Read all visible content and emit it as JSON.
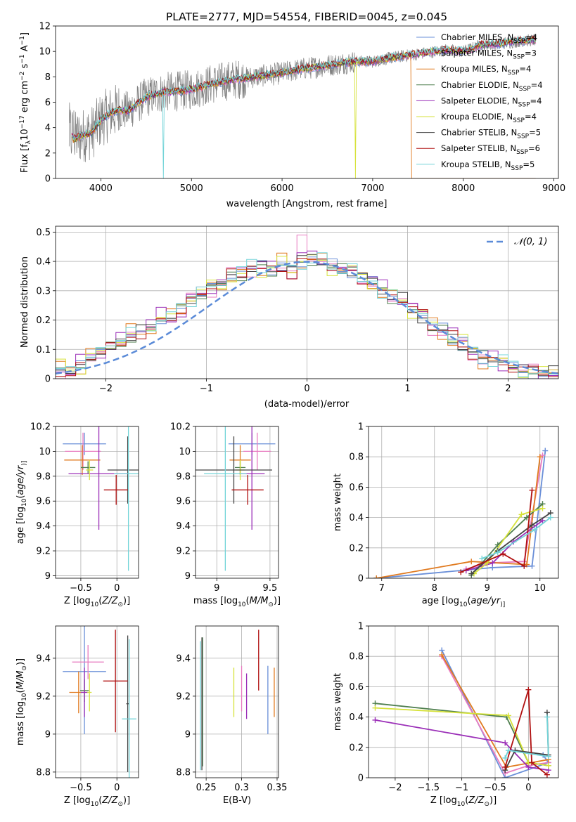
{
  "colors": {
    "Chabrier MILES": "#6a8fd8",
    "Salpeter MILES": "#e87bc0",
    "Kroupa MILES": "#e07a1f",
    "Chabrier ELODIE": "#4f7f4f",
    "Salpeter ELODIE": "#9b2fb8",
    "Kroupa ELODIE": "#d6e23a",
    "Chabrier STELIB": "#444444",
    "Salpeter STELIB": "#b01010",
    "Kroupa STELIB": "#73d4d8",
    "data": "#808080",
    "normal": "#5b8bd8"
  },
  "chart_data": [
    {
      "type": "line",
      "title": "PLATE=2777, MJD=54554, FIBERID=0045, z=0.045",
      "xlabel": "wavelength [Angstrom, rest frame]",
      "ylabel_parts": [
        "Flux [f",
        "λ",
        "10",
        "−17",
        " erg cm",
        "−2",
        " s",
        "−1",
        " A",
        "−1",
        "]"
      ],
      "xlim": [
        3500,
        9050
      ],
      "ylim": [
        0,
        12
      ],
      "xticks": [
        4000,
        5000,
        6000,
        7000,
        8000,
        9000
      ],
      "yticks": [
        0,
        2,
        4,
        6,
        8,
        10,
        12
      ],
      "legend": [
        {
          "name": "Chabrier MILES",
          "n": "4"
        },
        {
          "name": "Salpeter MILES",
          "n": "3"
        },
        {
          "name": "Kroupa MILES",
          "n": "4"
        },
        {
          "name": "Chabrier ELODIE",
          "n": "4"
        },
        {
          "name": "Salpeter ELODIE",
          "n": "4"
        },
        {
          "name": "Kroupa ELODIE",
          "n": "4"
        },
        {
          "name": "Chabrier STELIB",
          "n": "5"
        },
        {
          "name": "Salpeter STELIB",
          "n": "6"
        },
        {
          "name": "Kroupa STELIB",
          "n": "5"
        }
      ],
      "legend_placement": "upper-right",
      "model_continuum": {
        "x": [
          3650,
          3700,
          3800,
          3900,
          4000,
          4100,
          4200,
          4300,
          4500,
          4700,
          4900,
          5000,
          5200,
          5400,
          5600,
          5800,
          6000,
          6200,
          6400,
          6600,
          6800,
          7000,
          7200,
          7400,
          7600,
          7800,
          8000,
          8200,
          8400,
          8600,
          8800
        ],
        "y": [
          3.8,
          3.1,
          3.4,
          3.6,
          4.6,
          5.1,
          5.4,
          5.3,
          6.4,
          6.8,
          6.9,
          7.0,
          7.4,
          7.7,
          7.9,
          8.1,
          8.3,
          8.6,
          8.8,
          9.0,
          9.2,
          9.2,
          9.5,
          9.7,
          9.9,
          10.1,
          10.0,
          10.5,
          10.6,
          10.8,
          10.9
        ]
      },
      "data_spectrum_range": [
        3650,
        8800
      ],
      "dropouts": [
        {
          "x": 4680,
          "series": "Kroupa STELIB"
        },
        {
          "x": 6800,
          "series": "Kroupa ELODIE"
        },
        {
          "x": 7420,
          "series": "Kroupa MILES"
        }
      ]
    },
    {
      "type": "histogram",
      "xlabel": "(data-model)/error",
      "ylabel": "Normed distribution",
      "xlim": [
        -2.5,
        2.5
      ],
      "ylim": [
        0,
        0.52
      ],
      "xticks": [
        -2,
        -1,
        0,
        1,
        2
      ],
      "yticks": [
        0.0,
        0.1,
        0.2,
        0.3,
        0.4,
        0.5
      ],
      "grid": true,
      "legend": [
        {
          "name": "𝒩(0, 1)",
          "style": "dashed"
        }
      ],
      "legend_placement": "upper-right",
      "bin_width": 0.1,
      "bin_start": -2.5,
      "envelope": [
        0.03,
        0.03,
        0.05,
        0.07,
        0.09,
        0.11,
        0.12,
        0.15,
        0.16,
        0.18,
        0.21,
        0.22,
        0.24,
        0.27,
        0.29,
        0.31,
        0.33,
        0.35,
        0.36,
        0.38,
        0.38,
        0.37,
        0.39,
        0.37,
        0.4,
        0.41,
        0.4,
        0.38,
        0.38,
        0.37,
        0.34,
        0.33,
        0.3,
        0.28,
        0.27,
        0.24,
        0.21,
        0.18,
        0.16,
        0.14,
        0.12,
        0.09,
        0.07,
        0.06,
        0.05,
        0.04,
        0.03,
        0.03,
        0.02,
        0.02
      ],
      "series_offsets": [
        0.012,
        -0.015,
        0.02,
        -0.008,
        0.018,
        -0.02,
        0.006,
        -0.012,
        0.015
      ]
    },
    {
      "type": "errorbar",
      "xlabel_parts": [
        "Z [log",
        "10",
        "(",
        "Z/Z",
        "⊙",
        ")]"
      ],
      "ylabel_parts": [
        "age  [log",
        "10",
        "(",
        "age/yr",
        ")]"
      ],
      "xlim": [
        -0.85,
        0.3
      ],
      "ylim": [
        8.98,
        10.2
      ],
      "xticks": [
        -0.5,
        0.0
      ],
      "yticks": [
        9.0,
        9.2,
        9.4,
        9.6,
        9.8,
        10.0,
        10.2
      ],
      "grid": true,
      "points": [
        {
          "series": "Chabrier MILES",
          "x": -0.45,
          "xerr": 0.3,
          "y": 10.06,
          "yerr": 0.09
        },
        {
          "series": "Salpeter MILES",
          "x": -0.47,
          "xerr": 0.25,
          "y": 10.0,
          "yerr": 0.15
        },
        {
          "series": "Kroupa MILES",
          "x": -0.48,
          "xerr": 0.25,
          "y": 9.93,
          "yerr": 0.12
        },
        {
          "series": "Chabrier ELODIE",
          "x": -0.4,
          "xerr": 0.1,
          "y": 9.87,
          "yerr": 0.05
        },
        {
          "series": "Salpeter ELODIE",
          "x": -0.25,
          "xerr": 0.42,
          "y": 9.82,
          "yerr": 0.45
        },
        {
          "series": "Kroupa ELODIE",
          "x": -0.38,
          "xerr": 0.05,
          "y": 9.85,
          "yerr": 0.08
        },
        {
          "series": "Chabrier STELIB",
          "x": 0.15,
          "xerr": 0.28,
          "y": 9.85,
          "yerr": 0.27
        },
        {
          "series": "Salpeter STELIB",
          "x": -0.01,
          "xerr": 0.17,
          "y": 9.69,
          "yerr": 0.12
        },
        {
          "series": "Kroupa STELIB",
          "x": 0.16,
          "xerr": 0.2,
          "y": 9.82,
          "yerr": 0.78
        }
      ]
    },
    {
      "type": "errorbar",
      "xlabel_parts": [
        "mass [log",
        "10",
        "(",
        "M/M",
        "⊙",
        ")]"
      ],
      "ylabel_parts": [],
      "xlim": [
        8.8,
        9.58
      ],
      "ylim": [
        8.98,
        10.2
      ],
      "xticks": [
        9.0,
        9.5
      ],
      "yticks": [
        9.0,
        9.2,
        9.4,
        9.6,
        9.8,
        10.0,
        10.2
      ],
      "grid": true,
      "points": [
        {
          "series": "Chabrier MILES",
          "x": 9.33,
          "xerr": 0.22,
          "y": 10.06,
          "yerr": 0.09
        },
        {
          "series": "Salpeter MILES",
          "x": 9.38,
          "xerr": 0.13,
          "y": 10.0,
          "yerr": 0.15
        },
        {
          "series": "Kroupa MILES",
          "x": 9.22,
          "xerr": 0.1,
          "y": 9.93,
          "yerr": 0.12
        },
        {
          "series": "Chabrier ELODIE",
          "x": 9.22,
          "xerr": 0.05,
          "y": 9.87,
          "yerr": 0.05
        },
        {
          "series": "Salpeter ELODIE",
          "x": 9.33,
          "xerr": 0.12,
          "y": 9.82,
          "yerr": 0.45
        },
        {
          "series": "Kroupa ELODIE",
          "x": 9.22,
          "xerr": 0.04,
          "y": 9.85,
          "yerr": 0.08
        },
        {
          "series": "Chabrier STELIB",
          "x": 9.16,
          "xerr": 0.36,
          "y": 9.85,
          "yerr": 0.27
        },
        {
          "series": "Salpeter STELIB",
          "x": 9.29,
          "xerr": 0.15,
          "y": 9.69,
          "yerr": 0.12
        },
        {
          "series": "Kroupa STELIB",
          "x": 9.08,
          "xerr": 0.2,
          "y": 9.82,
          "yerr": 0.78
        }
      ]
    },
    {
      "type": "line",
      "xlabel_parts": [
        "age  [log",
        "10",
        "(",
        "age/yr",
        ")]"
      ],
      "ylabel": "mass weight",
      "xlim": [
        6.75,
        10.35
      ],
      "ylim": [
        0,
        1
      ],
      "xticks": [
        7,
        8,
        9,
        10
      ],
      "yticks": [
        0.0,
        0.2,
        0.4,
        0.6,
        0.8,
        1.0
      ],
      "grid": true,
      "series": [
        {
          "name": "Chabrier MILES",
          "x": [
            6.9,
            9.1,
            9.85,
            10.1
          ],
          "y": [
            0.0,
            0.07,
            0.08,
            0.84
          ]
        },
        {
          "name": "Salpeter MILES",
          "x": [
            8.6,
            9.0,
            9.7,
            10.05
          ],
          "y": [
            0.06,
            0.1,
            0.11,
            0.81
          ]
        },
        {
          "name": "Kroupa MILES",
          "x": [
            6.9,
            8.7,
            9.75,
            10.0
          ],
          "y": [
            0.0,
            0.11,
            0.09,
            0.8
          ]
        },
        {
          "name": "Chabrier ELODIE",
          "x": [
            8.7,
            9.2,
            9.75,
            10.05
          ],
          "y": [
            0.02,
            0.22,
            0.4,
            0.49
          ]
        },
        {
          "name": "Salpeter ELODIE",
          "x": [
            8.6,
            9.1,
            9.5,
            10.05
          ],
          "y": [
            0.05,
            0.1,
            0.24,
            0.38
          ]
        },
        {
          "name": "Kroupa ELODIE",
          "x": [
            8.75,
            9.0,
            9.65,
            10.05
          ],
          "y": [
            0.03,
            0.1,
            0.42,
            0.46
          ]
        },
        {
          "name": "Chabrier STELIB",
          "x": [
            8.7,
            9.2,
            9.85,
            10.2
          ],
          "y": [
            0.03,
            0.18,
            0.35,
            0.43
          ]
        },
        {
          "name": "Salpeter STELIB",
          "x": [
            8.5,
            9.3,
            9.7,
            9.85
          ],
          "y": [
            0.04,
            0.16,
            0.08,
            0.58
          ]
        },
        {
          "name": "Kroupa STELIB",
          "x": [
            8.9,
            9.2,
            9.9,
            10.2
          ],
          "y": [
            0.13,
            0.17,
            0.32,
            0.4
          ]
        }
      ]
    },
    {
      "type": "errorbar",
      "xlabel_parts": [
        "Z [log",
        "10",
        "(",
        "Z/Z",
        "⊙",
        ")]"
      ],
      "ylabel_parts": [
        "mass [log",
        "10",
        "(",
        "M/M",
        "⊙",
        ")]"
      ],
      "xlim": [
        -0.85,
        0.3
      ],
      "ylim": [
        8.77,
        9.57
      ],
      "xticks": [
        -0.5,
        0.0
      ],
      "yticks": [
        8.8,
        9.0,
        9.2,
        9.4
      ],
      "grid": true,
      "points": [
        {
          "series": "Chabrier MILES",
          "x": -0.45,
          "xerr": 0.3,
          "y": 9.33,
          "yerr": 0.33
        },
        {
          "series": "Salpeter MILES",
          "x": -0.4,
          "xerr": 0.22,
          "y": 9.38,
          "yerr": 0.09
        },
        {
          "series": "Kroupa MILES",
          "x": -0.53,
          "xerr": 0.13,
          "y": 9.22,
          "yerr": 0.11
        },
        {
          "series": "Chabrier ELODIE",
          "x": -0.45,
          "xerr": 0.06,
          "y": 9.23,
          "yerr": 0.06
        },
        {
          "series": "Salpeter ELODIE",
          "x": -0.45,
          "xerr": 0.05,
          "y": 9.22,
          "yerr": 0.13
        },
        {
          "series": "Kroupa ELODIE",
          "x": -0.38,
          "xerr": 0.03,
          "y": 9.22,
          "yerr": 0.1
        },
        {
          "series": "Chabrier STELIB",
          "x": 0.15,
          "xerr": 0.02,
          "y": 9.16,
          "yerr": 0.36
        },
        {
          "series": "Salpeter STELIB",
          "x": -0.02,
          "xerr": 0.17,
          "y": 9.28,
          "yerr": 0.27
        },
        {
          "series": "Kroupa STELIB",
          "x": 0.17,
          "xerr": 0.1,
          "y": 9.08,
          "yerr": 0.42
        }
      ]
    },
    {
      "type": "errorbar",
      "xlabel": "E(B-V)",
      "ylabel_parts": [],
      "xlim": [
        0.235,
        0.352
      ],
      "ylim": [
        8.77,
        9.57
      ],
      "xticks": [
        0.25,
        0.3,
        0.35
      ],
      "yticks": [
        8.8,
        9.0,
        9.2,
        9.4
      ],
      "grid": true,
      "points": [
        {
          "series": "Chabrier MILES",
          "x": 0.337,
          "y": 9.18,
          "yerr": 0.18
        },
        {
          "series": "Salpeter MILES",
          "x": 0.3,
          "y": 9.24,
          "yerr": 0.12
        },
        {
          "series": "Kroupa MILES",
          "x": 0.346,
          "y": 9.22,
          "yerr": 0.13
        },
        {
          "series": "Chabrier ELODIE",
          "x": 0.245,
          "y": 9.17,
          "yerr": 0.34
        },
        {
          "series": "Salpeter ELODIE",
          "x": 0.307,
          "y": 9.2,
          "yerr": 0.12
        },
        {
          "series": "Kroupa ELODIE",
          "x": 0.289,
          "y": 9.22,
          "yerr": 0.13
        },
        {
          "series": "Chabrier STELIB",
          "x": 0.244,
          "y": 9.16,
          "yerr": 0.35
        },
        {
          "series": "Salpeter STELIB",
          "x": 0.324,
          "y": 9.39,
          "yerr": 0.16
        },
        {
          "series": "Kroupa STELIB",
          "x": 0.242,
          "y": 9.15,
          "yerr": 0.34
        }
      ]
    },
    {
      "type": "line",
      "xlabel_parts": [
        "Z [log",
        "10",
        "(",
        "Z/Z",
        "⊙",
        ")]"
      ],
      "ylabel": "mass weight",
      "xlim": [
        -2.4,
        0.45
      ],
      "ylim": [
        0,
        1
      ],
      "xticks": [
        -2.0,
        -1.5,
        -1.0,
        -0.5,
        0.0
      ],
      "yticks": [
        0.0,
        0.2,
        0.4,
        0.6,
        0.8,
        1.0
      ],
      "grid": true,
      "series": [
        {
          "name": "Chabrier MILES",
          "x": [
            -1.3,
            -0.35,
            0.3,
            0.22
          ],
          "y": [
            0.84,
            0.0,
            0.1,
            0.15
          ]
        },
        {
          "name": "Salpeter MILES",
          "x": [
            -1.3,
            -0.35,
            0.0,
            0.3
          ],
          "y": [
            0.8,
            0.03,
            0.08,
            0.1
          ]
        },
        {
          "name": "Kroupa MILES",
          "x": [
            -1.3,
            -0.33,
            0.05,
            0.3
          ],
          "y": [
            0.81,
            0.07,
            0.1,
            0.12
          ]
        },
        {
          "name": "Chabrier ELODIE",
          "x": [
            -2.3,
            -0.33,
            0.0,
            0.3
          ],
          "y": [
            0.49,
            0.4,
            0.1,
            0.08
          ]
        },
        {
          "name": "Salpeter ELODIE",
          "x": [
            -2.3,
            -0.35,
            0.0,
            0.3
          ],
          "y": [
            0.38,
            0.23,
            0.07,
            0.05
          ]
        },
        {
          "name": "Kroupa ELODIE",
          "x": [
            -2.3,
            -0.3,
            0.0,
            0.3
          ],
          "y": [
            0.46,
            0.41,
            0.1,
            0.08
          ]
        },
        {
          "name": "Chabrier STELIB",
          "x": [
            -0.35,
            -0.2,
            0.3,
            0.28
          ],
          "y": [
            0.05,
            0.18,
            0.15,
            0.43
          ]
        },
        {
          "name": "Salpeter STELIB",
          "x": [
            -0.35,
            0.0,
            0.05,
            0.28
          ],
          "y": [
            0.07,
            0.58,
            0.1,
            0.02
          ]
        },
        {
          "name": "Kroupa STELIB",
          "x": [
            -0.35,
            -0.3,
            0.3,
            0.28
          ],
          "y": [
            0.13,
            0.18,
            0.14,
            0.4
          ]
        }
      ]
    }
  ]
}
